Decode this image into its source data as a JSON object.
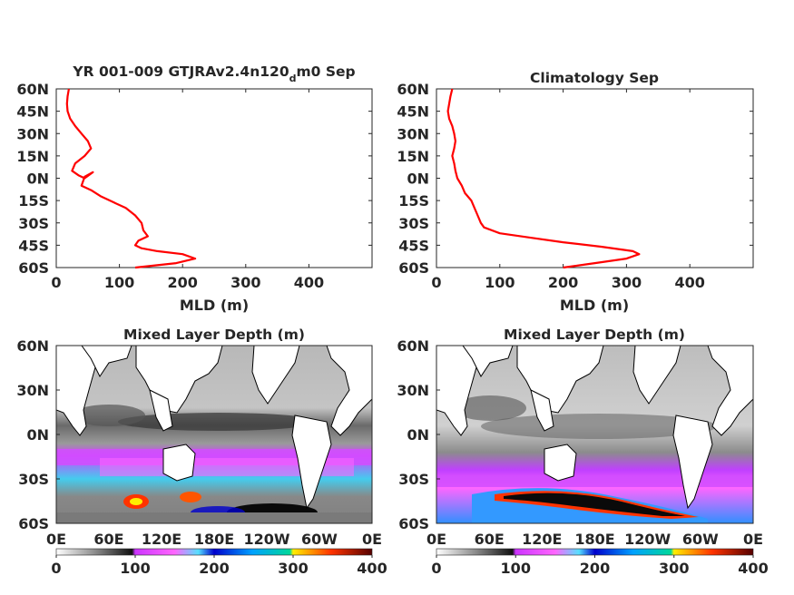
{
  "colors": {
    "profile_line": "#ff0000",
    "axis": "#262626",
    "land": "#ffffff"
  },
  "panels": {
    "model_title_prefix": "YR 001-009 GTJRAv2.4n120",
    "model_title_sub": "d",
    "model_title_suffix": "m0 Sep",
    "clim_title": "Climatology Sep",
    "map_title_left": "Mixed Layer Depth (m)",
    "map_title_right": "Mixed Layer Depth (m)",
    "map_lat_ticks": [
      "60N",
      "30N",
      "0N",
      "30S",
      "60S"
    ],
    "map_lon_ticks": [
      "0E",
      "60E",
      "120E",
      "180E",
      "120W",
      "60W",
      "0E"
    ],
    "colorbar_ticks": [
      "0",
      "100",
      "200",
      "300",
      "400"
    ]
  },
  "chart_data": [
    {
      "type": "line",
      "title": "YR 001-009 GTJRAv2.4n120dm0 Sep",
      "xlabel": "MLD (m)",
      "ylabel": "",
      "xlim": [
        0,
        500
      ],
      "ylim": [
        -60,
        60
      ],
      "x_ticks": [
        0,
        100,
        200,
        300,
        400
      ],
      "y_tick_values": [
        60,
        45,
        30,
        15,
        0,
        -15,
        -30,
        -45,
        -60
      ],
      "y_tick_labels": [
        "60N",
        "45N",
        "30N",
        "15N",
        "0N",
        "15S",
        "30S",
        "45S",
        "60S"
      ],
      "grid": false,
      "series": [
        {
          "x": [
            20,
            18,
            17,
            18,
            22,
            30,
            40,
            50,
            55,
            45,
            30,
            25,
            35,
            45,
            58,
            45,
            40,
            55,
            70,
            90,
            110,
            125,
            135,
            138,
            145,
            130,
            125,
            135,
            160,
            200,
            220,
            190,
            125
          ],
          "y": [
            60,
            55,
            50,
            45,
            40,
            35,
            30,
            25,
            20,
            15,
            10,
            5,
            2,
            0,
            4,
            1,
            -5,
            -8,
            -12,
            -16,
            -20,
            -25,
            -30,
            -35,
            -39,
            -42,
            -45,
            -47,
            -49,
            -51,
            -54,
            -57,
            -60
          ]
        }
      ]
    },
    {
      "type": "line",
      "title": "Climatology Sep",
      "xlabel": "MLD (m)",
      "ylabel": "",
      "xlim": [
        0,
        500
      ],
      "ylim": [
        -60,
        60
      ],
      "x_ticks": [
        0,
        100,
        200,
        300,
        400
      ],
      "y_tick_values": [
        60,
        45,
        30,
        15,
        0,
        -15,
        -30,
        -45,
        -60
      ],
      "y_tick_labels": [
        "60N",
        "45N",
        "30N",
        "15N",
        "0N",
        "15S",
        "30S",
        "45S",
        "60S"
      ],
      "grid": false,
      "series": [
        {
          "x": [
            25,
            22,
            20,
            18,
            20,
            25,
            28,
            30,
            28,
            25,
            28,
            30,
            33,
            40,
            45,
            55,
            60,
            65,
            70,
            75,
            100,
            150,
            200,
            260,
            310,
            320,
            300,
            250,
            200
          ],
          "y": [
            60,
            55,
            50,
            45,
            40,
            35,
            30,
            25,
            20,
            15,
            10,
            5,
            0,
            -5,
            -10,
            -15,
            -20,
            -25,
            -30,
            -33,
            -37,
            -40,
            -43,
            -46,
            -49,
            -51,
            -54,
            -57,
            -60
          ]
        }
      ]
    },
    {
      "type": "heatmap",
      "title": "Mixed Layer Depth (m)",
      "x_ticks": [
        "0E",
        "60E",
        "120E",
        "180E",
        "120W",
        "60W",
        "0E"
      ],
      "y_ticks": [
        "60N",
        "30N",
        "0N",
        "30S",
        "60S"
      ],
      "colorbar": {
        "range": [
          0,
          400
        ],
        "ticks": [
          0,
          100,
          200,
          300,
          400
        ]
      }
    },
    {
      "type": "heatmap",
      "title": "Mixed Layer Depth (m)",
      "x_ticks": [
        "0E",
        "60E",
        "120E",
        "180E",
        "120W",
        "60W",
        "0E"
      ],
      "y_ticks": [
        "60N",
        "30N",
        "0N",
        "30S",
        "60S"
      ],
      "colorbar": {
        "range": [
          0,
          400
        ],
        "ticks": [
          0,
          100,
          200,
          300,
          400
        ]
      }
    }
  ]
}
